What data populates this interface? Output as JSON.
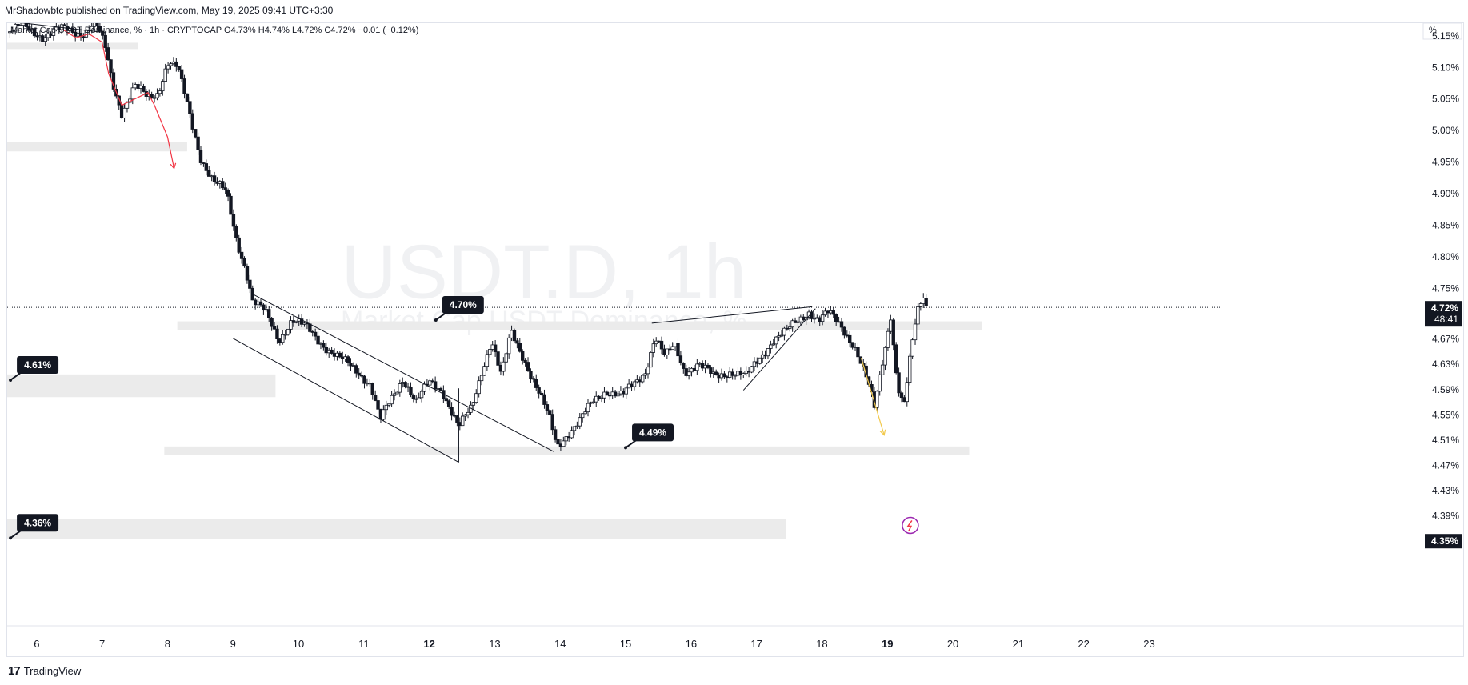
{
  "header": {
    "credit": "MrShadowbtc published on TradingView.com, May 19, 2025 09:41 UTC+3:30",
    "legend": {
      "symbol": "Market Cap USDT Dominance, % · 1h · CRYPTOCAP",
      "open_label": "O",
      "open": "4.73%",
      "high_label": "H",
      "high": "4.74%",
      "low_label": "L",
      "low": "4.72%",
      "close_label": "C",
      "close": "4.72%",
      "change": "−0.01 (−0.12%)"
    }
  },
  "watermark": {
    "ticker": "USDT.D, 1h",
    "name": "Market Cap USDT Dominance, %"
  },
  "price_axis": {
    "unit_label": "%",
    "current_price": "4.72%",
    "countdown": "48:41",
    "bottom_marker": "4.35%"
  },
  "annotations": [
    {
      "text": "4.70%",
      "value": 4.7
    },
    {
      "text": "4.61%",
      "value": 4.61
    },
    {
      "text": "4.49%",
      "value": 4.49
    },
    {
      "text": "4.36%",
      "value": 4.36
    }
  ],
  "footer": {
    "brand": "TradingView"
  },
  "chart_data": {
    "type": "candlestick",
    "symbol": "USDT.D",
    "interval": "1h",
    "y_axis": {
      "unit": "%",
      "ylim": [
        4.33,
        5.17
      ],
      "ticks": [
        "5.15%",
        "5.10%",
        "5.05%",
        "5.00%",
        "4.95%",
        "4.90%",
        "4.85%",
        "4.80%",
        "4.75%",
        "4.67%",
        "4.63%",
        "4.59%",
        "4.55%",
        "4.51%",
        "4.47%",
        "4.43%",
        "4.39%"
      ],
      "tick_values": [
        5.15,
        5.1,
        5.05,
        5.0,
        4.95,
        4.9,
        4.85,
        4.8,
        4.75,
        4.67,
        4.63,
        4.59,
        4.55,
        4.51,
        4.47,
        4.43,
        4.39
      ]
    },
    "x_axis": {
      "ticks": [
        "6",
        "7",
        "8",
        "9",
        "10",
        "11",
        "12",
        "13",
        "14",
        "15",
        "16",
        "17",
        "18",
        "19",
        "20",
        "21",
        "22",
        "23"
      ],
      "tick_values": [
        6,
        7,
        8,
        9,
        10,
        11,
        12,
        13,
        14,
        15,
        16,
        17,
        18,
        19,
        20,
        21,
        22,
        23
      ],
      "bold_ticks": [
        "12",
        "19"
      ],
      "xlim": [
        5.55,
        23.85
      ]
    },
    "price_path": [
      [
        5.55,
        5.155
      ],
      [
        5.8,
        5.165
      ],
      [
        6.1,
        5.15
      ],
      [
        6.4,
        5.16
      ],
      [
        6.7,
        5.155
      ],
      [
        6.9,
        5.17
      ],
      [
        7.05,
        5.13
      ],
      [
        7.15,
        5.08
      ],
      [
        7.3,
        5.03
      ],
      [
        7.5,
        5.07
      ],
      [
        7.7,
        5.05
      ],
      [
        7.85,
        5.06
      ],
      [
        8.0,
        5.11
      ],
      [
        8.15,
        5.1
      ],
      [
        8.3,
        5.04
      ],
      [
        8.5,
        4.96
      ],
      [
        8.7,
        4.92
      ],
      [
        8.9,
        4.9
      ],
      [
        9.05,
        4.83
      ],
      [
        9.2,
        4.78
      ],
      [
        9.3,
        4.73
      ],
      [
        9.5,
        4.71
      ],
      [
        9.7,
        4.67
      ],
      [
        9.9,
        4.7
      ],
      [
        10.15,
        4.685
      ],
      [
        10.4,
        4.66
      ],
      [
        10.6,
        4.64
      ],
      [
        10.9,
        4.62
      ],
      [
        11.1,
        4.6
      ],
      [
        11.25,
        4.54
      ],
      [
        11.4,
        4.57
      ],
      [
        11.6,
        4.61
      ],
      [
        11.8,
        4.57
      ],
      [
        12.0,
        4.6
      ],
      [
        12.2,
        4.59
      ],
      [
        12.45,
        4.53
      ],
      [
        12.65,
        4.56
      ],
      [
        12.8,
        4.62
      ],
      [
        12.95,
        4.67
      ],
      [
        13.1,
        4.61
      ],
      [
        13.25,
        4.68
      ],
      [
        13.45,
        4.64
      ],
      [
        13.65,
        4.59
      ],
      [
        13.85,
        4.54
      ],
      [
        13.95,
        4.5
      ],
      [
        14.1,
        4.52
      ],
      [
        14.3,
        4.54
      ],
      [
        14.5,
        4.57
      ],
      [
        14.7,
        4.59
      ],
      [
        14.95,
        4.58
      ],
      [
        15.15,
        4.6
      ],
      [
        15.3,
        4.62
      ],
      [
        15.45,
        4.675
      ],
      [
        15.6,
        4.64
      ],
      [
        15.75,
        4.66
      ],
      [
        15.9,
        4.62
      ],
      [
        16.1,
        4.63
      ],
      [
        16.35,
        4.61
      ],
      [
        16.6,
        4.62
      ],
      [
        16.85,
        4.61
      ],
      [
        17.05,
        4.64
      ],
      [
        17.25,
        4.67
      ],
      [
        17.45,
        4.68
      ],
      [
        17.65,
        4.7
      ],
      [
        17.8,
        4.715
      ],
      [
        17.95,
        4.7
      ],
      [
        18.1,
        4.71
      ],
      [
        18.3,
        4.69
      ],
      [
        18.5,
        4.66
      ],
      [
        18.6,
        4.63
      ],
      [
        18.7,
        4.6
      ],
      [
        18.8,
        4.56
      ],
      [
        18.95,
        4.65
      ],
      [
        19.05,
        4.71
      ],
      [
        19.15,
        4.6
      ],
      [
        19.25,
        4.56
      ],
      [
        19.35,
        4.64
      ],
      [
        19.45,
        4.71
      ],
      [
        19.55,
        4.74
      ],
      [
        19.6,
        4.72
      ]
    ],
    "zones": [
      {
        "x": [
          5.55,
          7.55
        ],
        "y": [
          5.129,
          5.139
        ]
      },
      {
        "x": [
          5.55,
          8.3
        ],
        "y": [
          4.967,
          4.982
        ]
      },
      {
        "x": [
          8.15,
          20.45
        ],
        "y": [
          4.684,
          4.698
        ]
      },
      {
        "x": [
          5.55,
          9.65
        ],
        "y": [
          4.578,
          4.614
        ]
      },
      {
        "x": [
          7.95,
          20.25
        ],
        "y": [
          4.487,
          4.5
        ]
      },
      {
        "x": [
          5.55,
          17.45
        ],
        "y": [
          4.354,
          4.385
        ]
      }
    ],
    "trendlines": [
      {
        "color": "#131722",
        "points": [
          [
            9.3,
            4.741
          ],
          [
            13.9,
            4.492
          ]
        ]
      },
      {
        "color": "#131722",
        "points": [
          [
            9.0,
            4.671
          ],
          [
            12.45,
            4.475
          ]
        ]
      },
      {
        "color": "#131722",
        "points": [
          [
            12.45,
            4.475
          ],
          [
            12.45,
            4.592
          ]
        ]
      },
      {
        "color": "#131722",
        "points": [
          [
            15.4,
            4.695
          ],
          [
            17.85,
            4.721
          ]
        ]
      },
      {
        "color": "#131722",
        "points": [
          [
            16.8,
            4.589
          ],
          [
            17.9,
            4.718
          ]
        ]
      },
      {
        "color": "#131722",
        "points": [
          [
            5.65,
            5.172
          ],
          [
            7.05,
            5.155
          ]
        ]
      }
    ],
    "projections": [
      {
        "color": "#f23645",
        "points": [
          [
            6.4,
            5.16
          ],
          [
            6.6,
            5.147
          ],
          [
            6.8,
            5.153
          ],
          [
            7.0,
            5.14
          ],
          [
            7.1,
            5.09
          ],
          [
            7.3,
            5.04
          ],
          [
            7.5,
            5.05
          ],
          [
            7.7,
            5.06
          ],
          [
            7.8,
            5.04
          ],
          [
            8.0,
            4.99
          ],
          [
            8.1,
            4.94
          ]
        ],
        "arrow": true
      },
      {
        "color": "#f2c94c",
        "points": [
          [
            18.6,
            4.64
          ],
          [
            18.95,
            4.518
          ]
        ],
        "arrow": true
      }
    ],
    "current_price": 4.72,
    "watermark_text": "USDT.D, 1h"
  }
}
